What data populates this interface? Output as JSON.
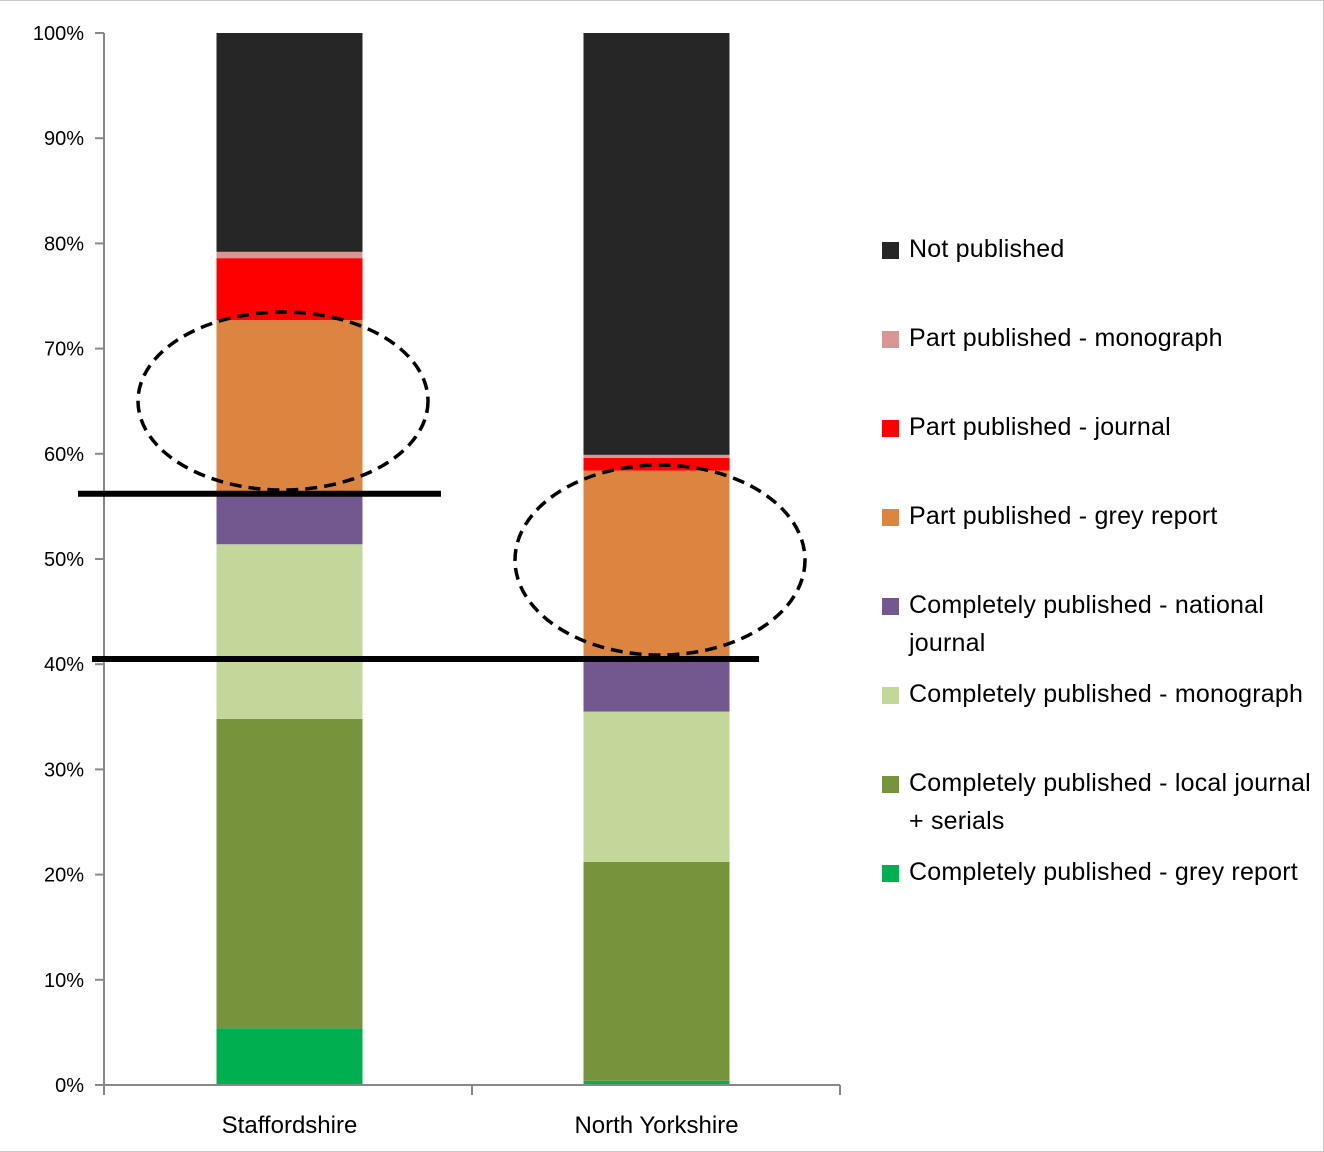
{
  "chart_data": {
    "type": "bar",
    "stacked": true,
    "categories": [
      "Staffordshire",
      "North Yorkshire"
    ],
    "ylim": [
      0,
      100
    ],
    "yticks": [
      "0%",
      "10%",
      "20%",
      "30%",
      "40%",
      "50%",
      "60%",
      "70%",
      "80%",
      "90%",
      "100%"
    ],
    "series": [
      {
        "name": "Completely published - grey report",
        "color": "#00b050",
        "values": [
          5.4,
          0.4
        ]
      },
      {
        "name": "Completely published - local journal + serials",
        "color": "#77933c",
        "values": [
          29.4,
          20.8
        ]
      },
      {
        "name": "Completely published - monograph",
        "color": "#c4d79b",
        "values": [
          16.6,
          14.3
        ]
      },
      {
        "name": "Completely published - national journal",
        "color": "#72588f",
        "values": [
          4.8,
          5.0
        ]
      },
      {
        "name": "Part published - grey report",
        "color": "#dc8540",
        "values": [
          16.5,
          17.9
        ]
      },
      {
        "name": "Part published - journal",
        "color": "#ff0000",
        "values": [
          5.9,
          1.2
        ]
      },
      {
        "name": "Part published - monograph",
        "color": "#d99694",
        "values": [
          0.6,
          0.3
        ]
      },
      {
        "name": "Not published",
        "color": "#262626",
        "values": [
          20.8,
          40.1
        ]
      }
    ],
    "legend_order": [
      "Not published",
      "Part published - monograph",
      "Part published - journal",
      "Part published - grey report",
      "Completely published - national journal",
      "Completely published - monograph",
      "Completely published - local journal + serials",
      "Completely published - grey report"
    ],
    "legend_position": "right",
    "annotations": {
      "horizontal_lines": [
        {
          "category": "Staffordshire",
          "y": 56.2
        },
        {
          "category": "North Yorkshire",
          "y": 40.5
        }
      ],
      "dashed_ellipses": [
        {
          "category": "Staffordshire",
          "series": "Part published - grey report"
        },
        {
          "category": "North Yorkshire",
          "series": "Part published - grey report"
        }
      ]
    },
    "grid": false
  }
}
